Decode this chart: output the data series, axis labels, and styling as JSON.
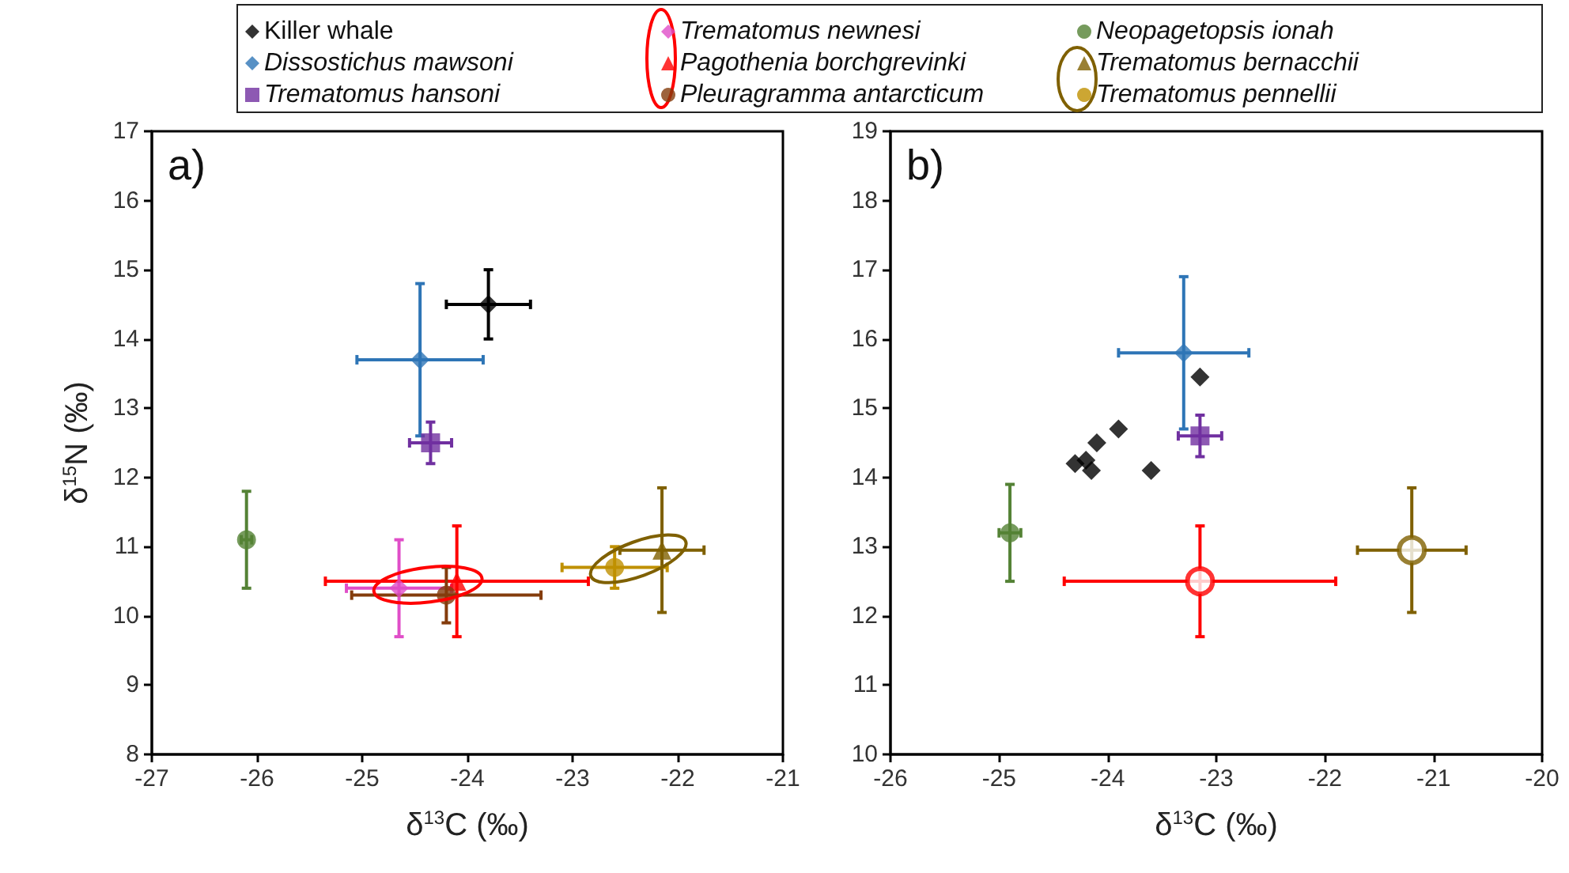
{
  "chart_data": [
    {
      "type": "scatter",
      "xlabel": "δ$^{13}$C (‰)",
      "ylabel": "δ$^{15}$N (‰)",
      "annotations": [
        "a)"
      ],
      "xlim": [
        -27,
        -21
      ],
      "xticks": [
        -27,
        -26,
        -25,
        -24,
        -23,
        -22,
        -21
      ],
      "ylim": [
        8,
        17
      ],
      "yticks": [
        8,
        9,
        10,
        11,
        12,
        13,
        14,
        15,
        16,
        17
      ],
      "grid": false,
      "legend": "top",
      "series": [
        {
          "name": "Killer whale",
          "color": "#000000",
          "marker": "diamond",
          "x": [
            -23.8
          ],
          "values": [
            14.5
          ],
          "xerrors": [
            0.4
          ],
          "errors": [
            0.5
          ]
        },
        {
          "name": "Dissostichus mawsoni",
          "color": "#2e75b6",
          "marker": "diamond",
          "x": [
            -24.45
          ],
          "values": [
            13.7
          ],
          "xerrors": [
            0.6
          ],
          "errors": [
            1.1
          ]
        },
        {
          "name": "Trematomus hansoni",
          "color": "#7030a0",
          "marker": "square",
          "x": [
            -24.35
          ],
          "values": [
            12.5
          ],
          "xerrors": [
            0.2
          ],
          "errors": [
            0.3
          ]
        },
        {
          "name": "Trematomus newnesi",
          "color": "#e04ec8",
          "marker": "diamond",
          "x": [
            -24.65
          ],
          "values": [
            10.4
          ],
          "xerrors": [
            0.5
          ],
          "errors": [
            0.7
          ]
        },
        {
          "name": "Pagothenia borchgrevinki",
          "color": "#ff0000",
          "marker": "triangle",
          "x": [
            -24.1
          ],
          "values": [
            10.5
          ],
          "xerrors": [
            1.25
          ],
          "errors": [
            0.8
          ]
        },
        {
          "name": "Pleuragramma antarcticum",
          "color": "#843c0c",
          "marker": "circle",
          "x": [
            -24.2
          ],
          "values": [
            10.3
          ],
          "xerrors": [
            0.9
          ],
          "errors": [
            0.4
          ]
        },
        {
          "name": "Neopagetopsis ionah",
          "color": "#548235",
          "marker": "circle",
          "x": [
            -26.1
          ],
          "values": [
            11.1
          ],
          "xerrors": [
            0.05
          ],
          "errors": [
            0.7
          ]
        },
        {
          "name": "Trematomus bernacchii",
          "color": "#7f6000",
          "marker": "triangle",
          "x": [
            -22.15
          ],
          "values": [
            10.95
          ],
          "xerrors": [
            0.4
          ],
          "errors": [
            0.9
          ]
        },
        {
          "name": "Trematomus pennellii",
          "color": "#bf9000",
          "marker": "circle",
          "x": [
            -22.6
          ],
          "values": [
            10.7
          ],
          "xerrors": [
            0.5
          ],
          "errors": [
            0.3
          ]
        }
      ]
    },
    {
      "type": "scatter",
      "xlabel": "δ$^{13}$C (‰)",
      "annotations": [
        "b)"
      ],
      "xlim": [
        -26,
        -20
      ],
      "xticks": [
        -26,
        -25,
        -24,
        -23,
        -22,
        -21,
        -20
      ],
      "ylim": [
        10,
        19
      ],
      "yticks": [
        10,
        11,
        12,
        13,
        14,
        15,
        16,
        17,
        18,
        19
      ],
      "grid": false,
      "series": [
        {
          "color": "#000000",
          "marker": "diamond",
          "x": [
            -23.15,
            -23.9,
            -24.1,
            -24.3,
            -24.2,
            -24.15,
            -23.6
          ],
          "values": [
            15.45,
            14.7,
            14.5,
            14.2,
            14.25,
            14.1,
            14.1
          ]
        },
        {
          "color": "#2e75b6",
          "marker": "diamond",
          "x": [
            -23.3
          ],
          "values": [
            15.8
          ],
          "xerrors": [
            0.6
          ],
          "errors": [
            1.1
          ]
        },
        {
          "color": "#7030a0",
          "marker": "square",
          "x": [
            -23.15
          ],
          "values": [
            14.6
          ],
          "xerrors": [
            0.2
          ],
          "errors": [
            0.3
          ]
        },
        {
          "color": "#548235",
          "marker": "circle",
          "x": [
            -24.9
          ],
          "values": [
            13.2
          ],
          "xerrors": [
            0.1
          ],
          "errors": [
            0.7
          ]
        },
        {
          "color": "#ff0000",
          "marker": "circle",
          "x": [
            -23.15
          ],
          "values": [
            12.5
          ],
          "xerrors": [
            1.25
          ],
          "errors": [
            0.8
          ]
        },
        {
          "color": "#7f6000",
          "marker": "circle",
          "x": [
            -21.2
          ],
          "values": [
            12.95
          ],
          "xerrors": [
            0.5
          ],
          "errors": [
            0.9
          ]
        }
      ]
    }
  ]
}
